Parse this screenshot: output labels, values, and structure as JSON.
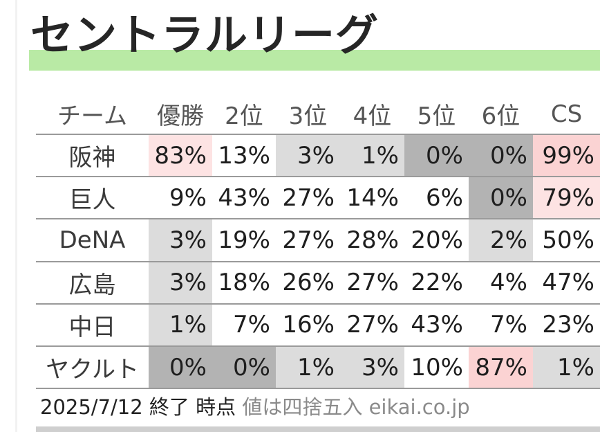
{
  "title": "セントラルリーグ",
  "chart_data": {
    "type": "table",
    "columns": [
      "チーム",
      "優勝",
      "2位",
      "3位",
      "4位",
      "5位",
      "6位",
      "CS"
    ],
    "rows": [
      {
        "team": "阪神",
        "values": [
          "83%",
          "13%",
          "3%",
          "1%",
          "0%",
          "0%",
          "99%"
        ],
        "shades": [
          83,
          13,
          3,
          1,
          0,
          0,
          99
        ]
      },
      {
        "team": "巨人",
        "values": [
          "9%",
          "43%",
          "27%",
          "14%",
          "6%",
          "0%",
          "79%"
        ],
        "shades": [
          9,
          43,
          27,
          14,
          6,
          0,
          79
        ]
      },
      {
        "team": "DeNA",
        "values": [
          "3%",
          "19%",
          "27%",
          "28%",
          "20%",
          "2%",
          "50%"
        ],
        "shades": [
          3,
          19,
          27,
          28,
          20,
          2,
          50
        ]
      },
      {
        "team": "広島",
        "values": [
          "3%",
          "18%",
          "26%",
          "27%",
          "22%",
          "4%",
          "47%"
        ],
        "shades": [
          3,
          18,
          26,
          27,
          22,
          4,
          47
        ]
      },
      {
        "team": "中日",
        "values": [
          "1%",
          "7%",
          "16%",
          "27%",
          "43%",
          "7%",
          "23%"
        ],
        "shades": [
          1,
          7,
          16,
          27,
          43,
          7,
          23
        ]
      },
      {
        "team": "ヤクルト",
        "values": [
          "0%",
          "0%",
          "1%",
          "3%",
          "10%",
          "87%",
          "1%"
        ],
        "shades": [
          0,
          0,
          1,
          3,
          10,
          87,
          1
        ]
      }
    ]
  },
  "colors": {
    "title_band": "#b9eaa5",
    "high_fill": "#fde3e3",
    "very_high_fill": "#fbd3d3",
    "low_fill": "#dcdcdc",
    "zero_fill": "#b3b3b3"
  },
  "footer": {
    "date": "2025/7/12 終了 時点",
    "note": "値は四捨五入 eikai.co.jp"
  }
}
